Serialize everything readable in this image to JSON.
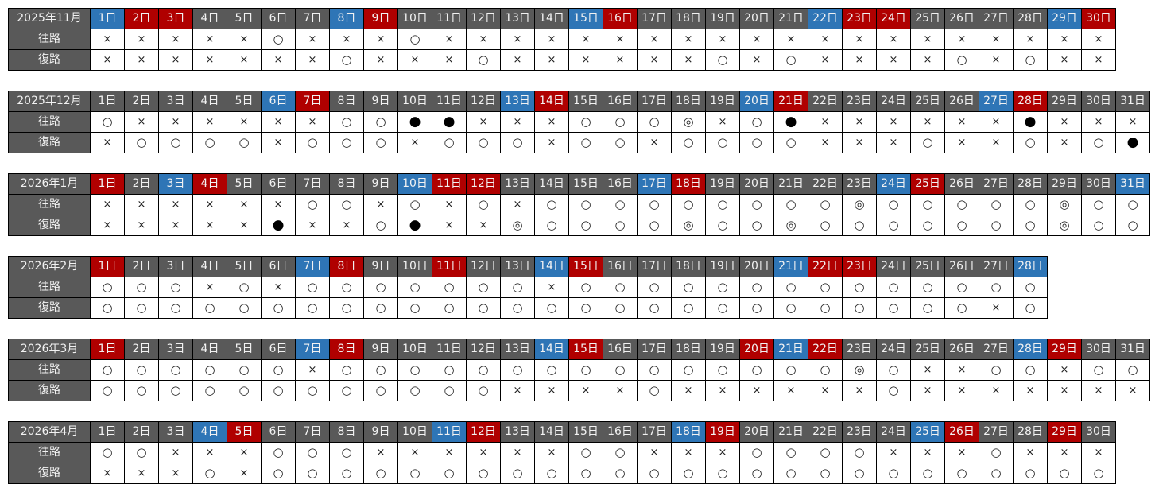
{
  "row_labels": {
    "outbound": "往路",
    "return": "復路"
  },
  "colors": {
    "weekday_header": "#595959",
    "saturday_header": "#2e75b6",
    "sunday_holiday_header": "#b00000"
  },
  "months": [
    {
      "title": "2025年11月",
      "days": [
        "1日",
        "2日",
        "3日",
        "4日",
        "5日",
        "6日",
        "7日",
        "8日",
        "9日",
        "10日",
        "11日",
        "12日",
        "13日",
        "14日",
        "15日",
        "16日",
        "17日",
        "18日",
        "19日",
        "20日",
        "21日",
        "22日",
        "23日",
        "24日",
        "25日",
        "26日",
        "27日",
        "28日",
        "29日",
        "30日"
      ],
      "saturdays": [
        1,
        8,
        15,
        22,
        29
      ],
      "holidays": [
        2,
        3,
        9,
        16,
        23,
        24,
        30
      ],
      "outbound": "×××××○×××○××××××××××××××××××××",
      "return": "×××××××○×××○××××××○×○××××○×○××"
    },
    {
      "title": "2025年12月",
      "days": [
        "1日",
        "2日",
        "3日",
        "4日",
        "5日",
        "6日",
        "7日",
        "8日",
        "9日",
        "10日",
        "11日",
        "12日",
        "13日",
        "14日",
        "15日",
        "16日",
        "17日",
        "18日",
        "19日",
        "20日",
        "21日",
        "22日",
        "23日",
        "24日",
        "25日",
        "26日",
        "27日",
        "28日",
        "29日",
        "30日",
        "31日"
      ],
      "saturdays": [
        6,
        13,
        20,
        27
      ],
      "holidays": [
        7,
        14,
        21,
        28
      ],
      "outbound": "○××××××○○●●×××○○○◎×○●××××××●×××",
      "return": "×○○○○×○○○×○○○×○○×○○○○×××○××○×○●"
    },
    {
      "title": "2026年1月",
      "days": [
        "1日",
        "2日",
        "3日",
        "4日",
        "5日",
        "6日",
        "7日",
        "8日",
        "9日",
        "10日",
        "11日",
        "12日",
        "13日",
        "14日",
        "15日",
        "16日",
        "17日",
        "18日",
        "19日",
        "20日",
        "21日",
        "22日",
        "23日",
        "24日",
        "25日",
        "26日",
        "27日",
        "28日",
        "29日",
        "30日",
        "31日"
      ],
      "saturdays": [
        3,
        10,
        17,
        24,
        31
      ],
      "holidays": [
        1,
        4,
        11,
        12,
        18,
        25
      ],
      "outbound": "××××××○○×○×○×○○○○○○○○○◎○○○○○◎○○",
      "return": "×××××●××○●××◎○○○○◎○○◎○○○○○○○◎○○"
    },
    {
      "title": "2026年2月",
      "days": [
        "1日",
        "2日",
        "3日",
        "4日",
        "5日",
        "6日",
        "7日",
        "8日",
        "9日",
        "10日",
        "11日",
        "12日",
        "13日",
        "14日",
        "15日",
        "16日",
        "17日",
        "18日",
        "19日",
        "20日",
        "21日",
        "22日",
        "23日",
        "24日",
        "25日",
        "26日",
        "27日",
        "28日"
      ],
      "saturdays": [
        7,
        14,
        21,
        28
      ],
      "holidays": [
        1,
        8,
        11,
        15,
        22,
        23
      ],
      "outbound": "○○○×○×○○○○○○○×○○○○○○○○○○○○○○",
      "return": "○○○○○○○○○○○○○○○○○○○○○○○○○○×○"
    },
    {
      "title": "2026年3月",
      "days": [
        "1日",
        "2日",
        "3日",
        "4日",
        "5日",
        "6日",
        "7日",
        "8日",
        "9日",
        "10日",
        "11日",
        "12日",
        "13日",
        "14日",
        "15日",
        "16日",
        "17日",
        "18日",
        "19日",
        "20日",
        "21日",
        "22日",
        "23日",
        "24日",
        "25日",
        "26日",
        "27日",
        "28日",
        "29日",
        "30日",
        "31日"
      ],
      "saturdays": [
        7,
        14,
        21,
        28
      ],
      "holidays": [
        1,
        8,
        15,
        20,
        22,
        29
      ],
      "outbound": "○○○○○○×○○○○○○○○○○○○○○○◎○××○○×○○",
      "return": "○○○○○○○○○○○○××××○××××××○×××××××"
    },
    {
      "title": "2026年4月",
      "days": [
        "1日",
        "2日",
        "3日",
        "4日",
        "5日",
        "6日",
        "7日",
        "8日",
        "9日",
        "10日",
        "11日",
        "12日",
        "13日",
        "14日",
        "15日",
        "16日",
        "17日",
        "18日",
        "19日",
        "20日",
        "21日",
        "22日",
        "23日",
        "24日",
        "25日",
        "26日",
        "27日",
        "28日",
        "29日",
        "30日"
      ],
      "saturdays": [
        4,
        11,
        18,
        25
      ],
      "holidays": [
        5,
        12,
        19,
        26,
        29
      ],
      "outbound": "○○×××○○○××××××○○×××○○○○×××○×××",
      "return": "×××○×○○○○○○○○○○○○○○○○○○○○○○○○○"
    }
  ]
}
